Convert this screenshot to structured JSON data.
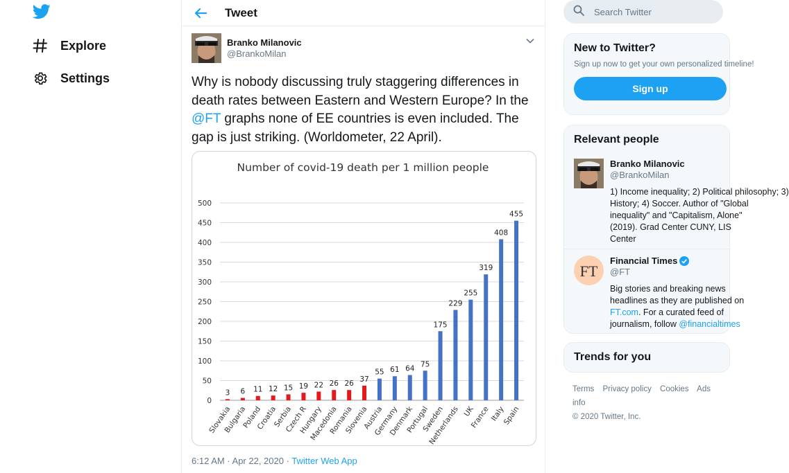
{
  "nav": {
    "explore_label": "Explore",
    "settings_label": "Settings"
  },
  "header": {
    "title": "Tweet"
  },
  "tweet": {
    "author_name": "Branko Milanovic",
    "author_handle": "@BrankoMilan",
    "text_part1": "Why is nobody discussing truly staggering differences in death rates between Eastern and Western Europe? In the ",
    "mention": "@FT",
    "text_part2": " graphs none of EE countries is even included. The gap is just striking. (Worldometer, 22 April).",
    "timestamp": "6:12 AM · Apr 22, 2020 · ",
    "source": "Twitter Web App"
  },
  "chart_data": {
    "type": "bar",
    "title": "Number of covid-19 death per 1 million people",
    "xlabel": "",
    "ylabel": "",
    "ylim": [
      0,
      500
    ],
    "yticks": [
      0,
      50,
      100,
      150,
      200,
      250,
      300,
      350,
      400,
      450,
      500
    ],
    "grid": true,
    "categories": [
      "Slovakia",
      "Bulgaria",
      "Poland",
      "Croatia",
      "Serbia",
      "Czech R",
      "Hungary",
      "Macedonia",
      "Romania",
      "Slovenia",
      "Austria",
      "Germany",
      "Denmark",
      "Portugal",
      "Sweden",
      "Netherlands",
      "UK",
      "France",
      "Italy",
      "Spain"
    ],
    "values": [
      3,
      6,
      11,
      12,
      15,
      19,
      22,
      26,
      26,
      37,
      55,
      61,
      64,
      75,
      175,
      229,
      255,
      319,
      408,
      455
    ],
    "bar_colors": [
      "#e31a1c",
      "#e31a1c",
      "#e31a1c",
      "#e31a1c",
      "#e31a1c",
      "#e31a1c",
      "#e31a1c",
      "#e31a1c",
      "#e31a1c",
      "#e31a1c",
      "#4472c4",
      "#4472c4",
      "#4472c4",
      "#4472c4",
      "#4472c4",
      "#4472c4",
      "#4472c4",
      "#4472c4",
      "#4472c4",
      "#4472c4"
    ]
  },
  "sidebar": {
    "search_placeholder": "Search Twitter",
    "new_title": "New to Twitter?",
    "new_text": "Sign up now to get your own personalized timeline!",
    "signup_label": "Sign up",
    "relevant_title": "Relevant people",
    "people": [
      {
        "name": "Branko Milanovic",
        "handle": "@BrankoMilan",
        "bio_lines": [
          "1) Income inequality; 2) Political philosophy; 3)",
          "History; 4) Soccer. Author of \"Global",
          "inequality\" and \"Capitalism, Alone\"",
          "(2019). Grad Center CUNY, LIS",
          "Center"
        ]
      },
      {
        "name": "Financial Times",
        "handle": "@FT",
        "bio_line1": "Big stories and breaking news",
        "bio_line2": "headlines as they are published on",
        "bio_link": "FT.com",
        "bio_line3_rest": ". For a curated feed of",
        "bio_line4": "journalism, follow ",
        "bio_mention": "@financialtimes"
      }
    ],
    "trends_title": "Trends for you",
    "footer_links": [
      "Terms",
      "Privacy policy",
      "Cookies",
      "Ads info"
    ],
    "copyright": "© 2020 Twitter, Inc."
  },
  "colors": {
    "accent": "#1da1f2",
    "eastern_bar": "#e31a1c",
    "western_bar": "#4472c4"
  }
}
